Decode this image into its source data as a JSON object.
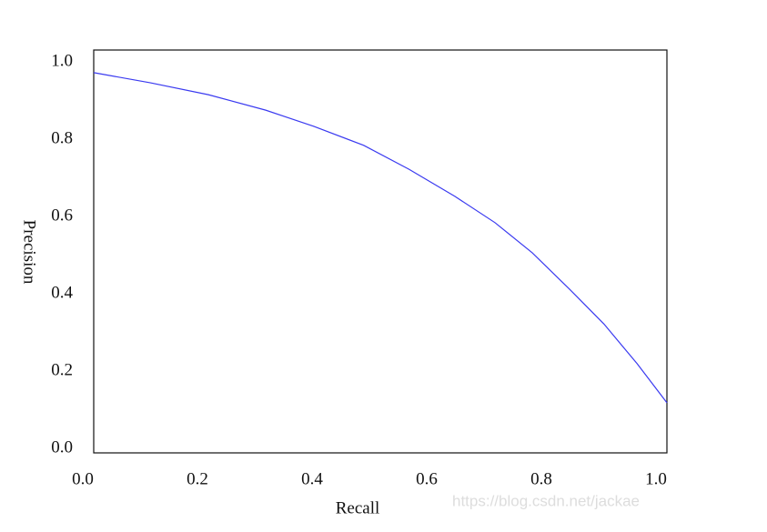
{
  "chart_data": {
    "type": "line",
    "x_label": "Recall",
    "y_label": "Precision",
    "watermark": "https://blog.csdn.net/jackae",
    "xlim": [
      0,
      1
    ],
    "ylim": [
      0,
      1
    ],
    "xticks": [
      {
        "value": 0,
        "label": "0.0"
      },
      0.2,
      0.4,
      0.6,
      0.8,
      {
        "value": 1,
        "label": "1.0"
      }
    ],
    "yticks": [
      {
        "value": 0,
        "label": "0.0"
      },
      0.2,
      0.4,
      0.6,
      0.8,
      {
        "value": 1,
        "label": "1.0"
      }
    ],
    "grid": false,
    "series": [
      {
        "color": "#3a3af0",
        "x": [
          0,
          0.098,
          0.2,
          0.3,
          0.384,
          0.471,
          0.55,
          0.63,
          0.7,
          0.765,
          0.83,
          0.89,
          0.948,
          1.0
        ],
        "values": [
          0.972,
          0.946,
          0.915,
          0.875,
          0.833,
          0.784,
          0.722,
          0.652,
          0.584,
          0.506,
          0.412,
          0.322,
          0.219,
          0.118
        ]
      }
    ]
  }
}
